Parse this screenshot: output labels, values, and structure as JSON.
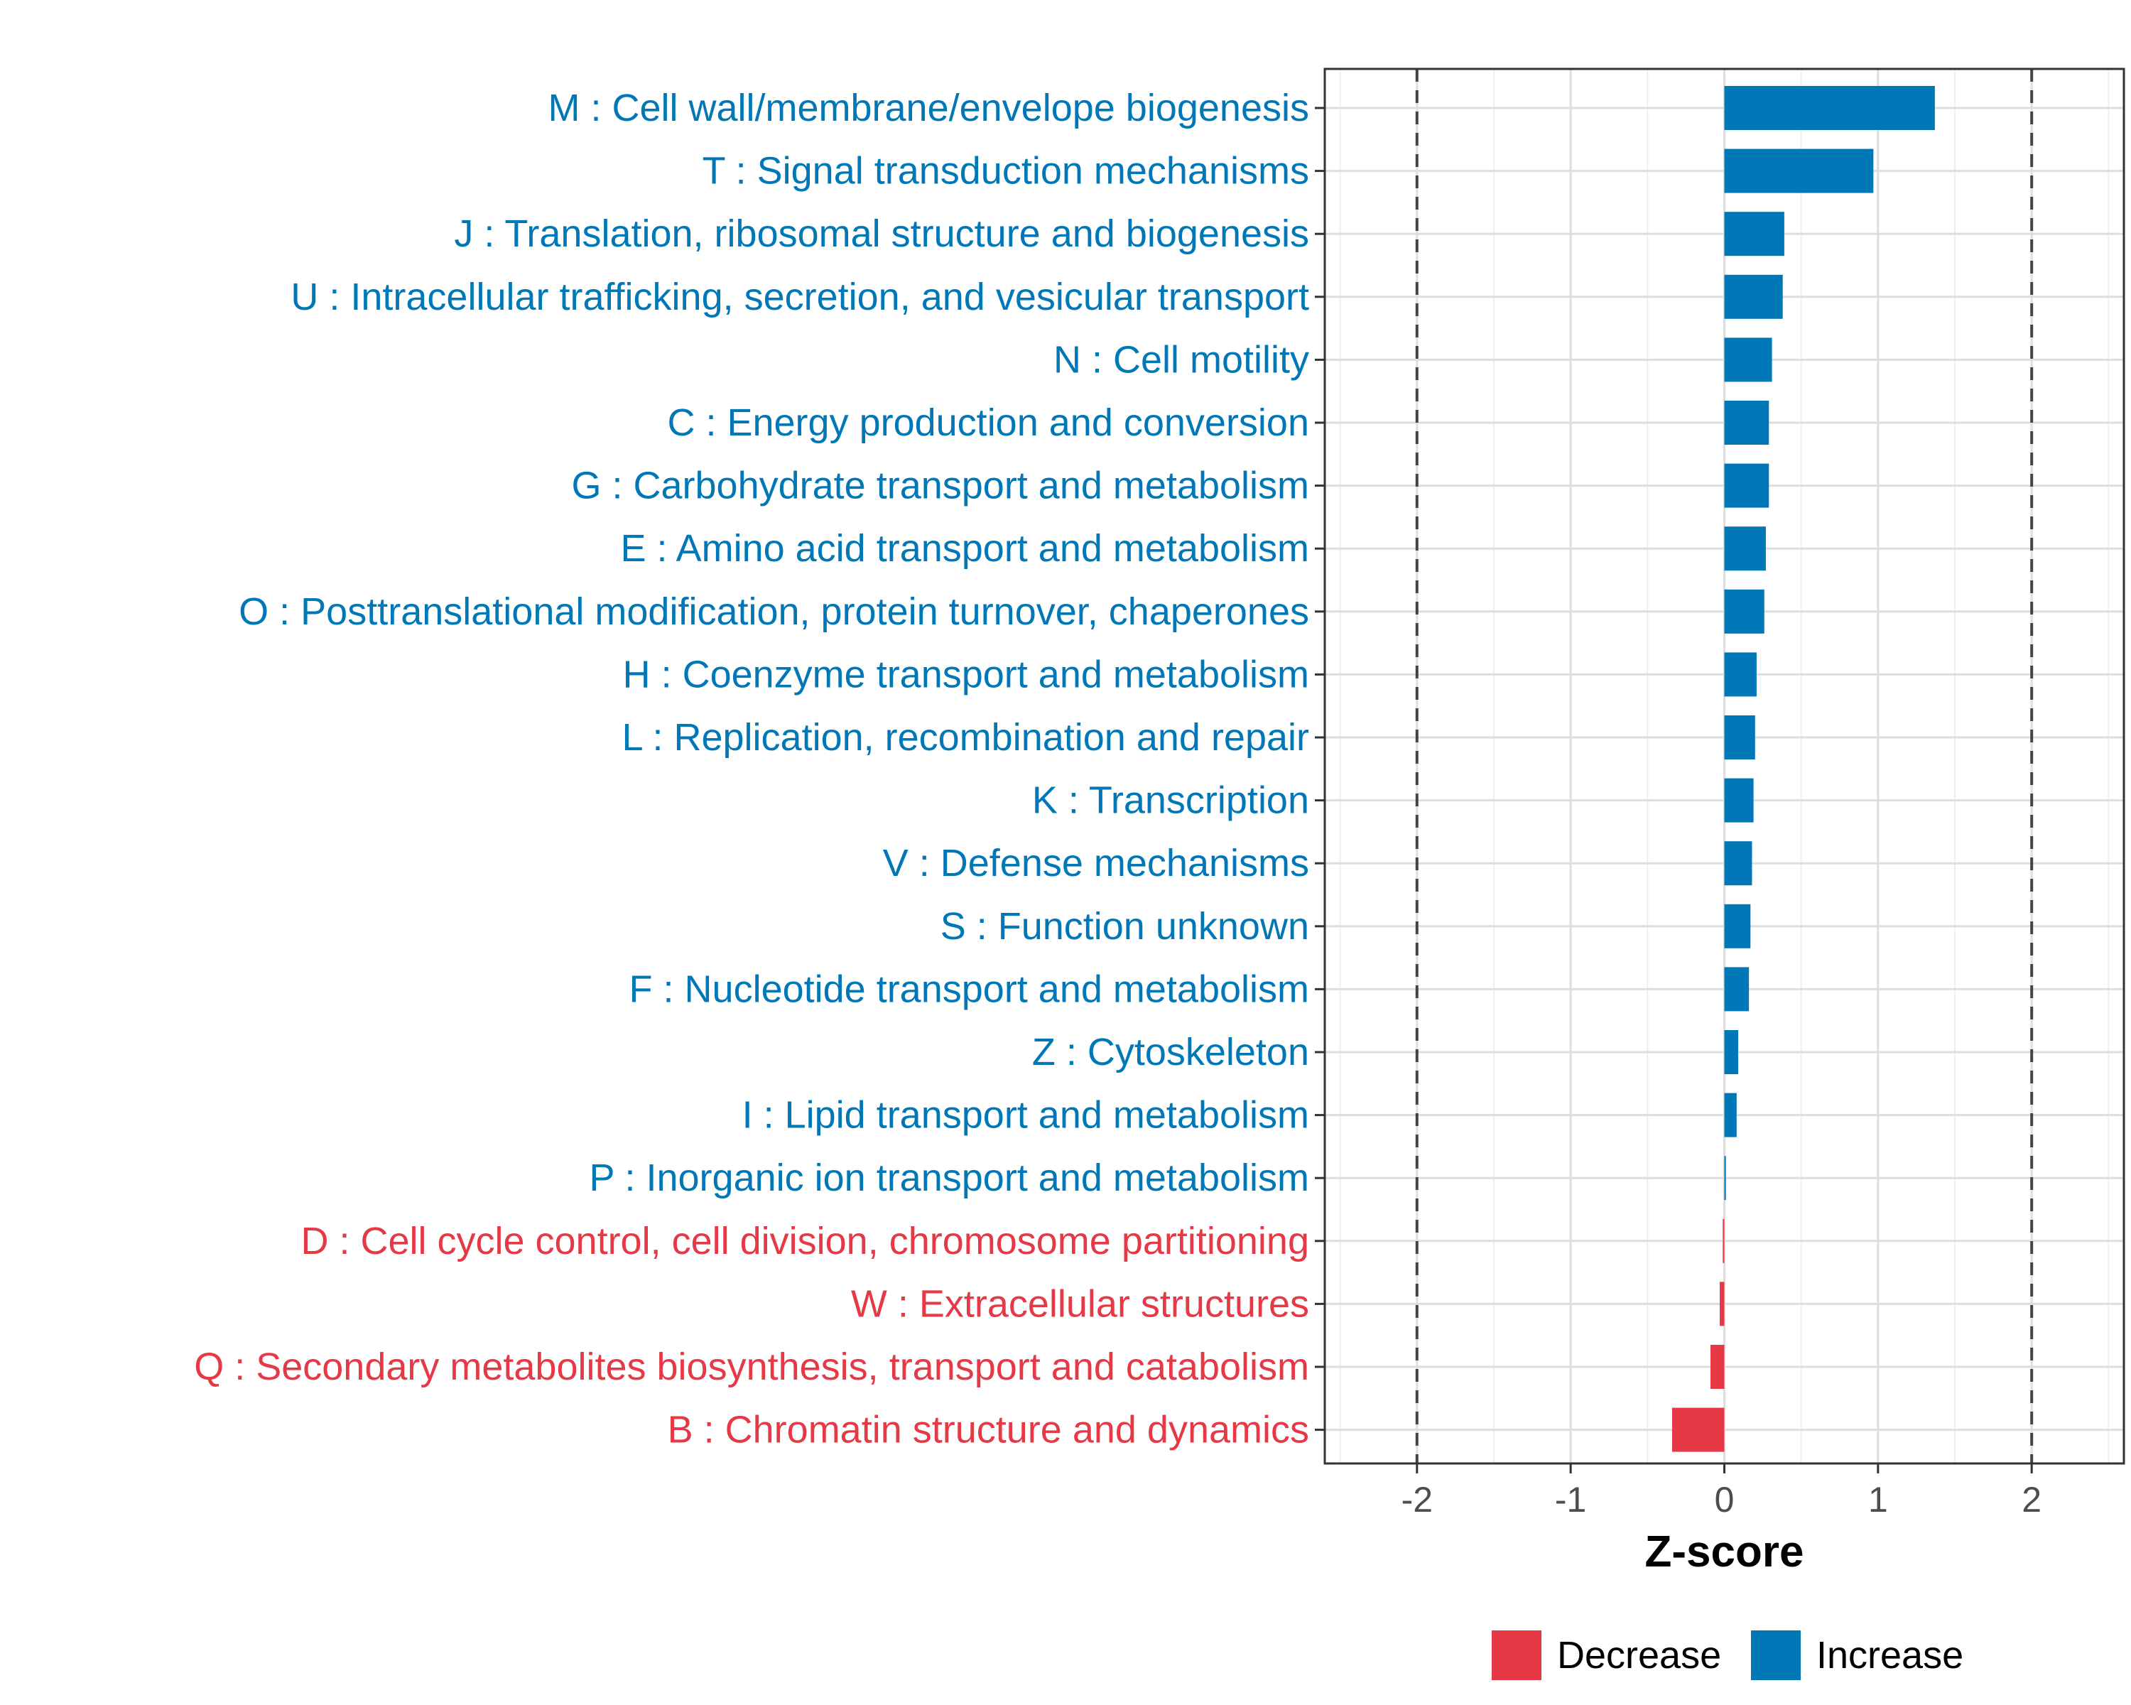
{
  "chart_data": {
    "type": "bar",
    "orientation": "horizontal",
    "xlabel": "Z-score",
    "xlim": [
      -2.6,
      2.6
    ],
    "x_ticks": [
      -2,
      -1,
      0,
      1,
      2
    ],
    "x_tick_labels": [
      "-2",
      "-1",
      "0",
      "1",
      "2"
    ],
    "reference_lines": [
      -2,
      2
    ],
    "grid": true,
    "legend": {
      "placement": "bottom",
      "entries": [
        {
          "label": "Decrease",
          "color": "#e63946"
        },
        {
          "label": "Increase",
          "color": "#0077b6"
        }
      ]
    },
    "categories": [
      {
        "label": "M : Cell wall/membrane/envelope biogenesis",
        "value": 1.37,
        "direction": "Increase"
      },
      {
        "label": "T : Signal transduction mechanisms",
        "value": 0.97,
        "direction": "Increase"
      },
      {
        "label": "J : Translation, ribosomal structure and biogenesis",
        "value": 0.39,
        "direction": "Increase"
      },
      {
        "label": "U : Intracellular trafficking, secretion, and vesicular transport",
        "value": 0.38,
        "direction": "Increase"
      },
      {
        "label": "N : Cell motility",
        "value": 0.31,
        "direction": "Increase"
      },
      {
        "label": "C : Energy production and conversion",
        "value": 0.29,
        "direction": "Increase"
      },
      {
        "label": "G : Carbohydrate transport and metabolism",
        "value": 0.29,
        "direction": "Increase"
      },
      {
        "label": "E : Amino acid transport and metabolism",
        "value": 0.27,
        "direction": "Increase"
      },
      {
        "label": "O : Posttranslational modification, protein turnover, chaperones",
        "value": 0.26,
        "direction": "Increase"
      },
      {
        "label": "H : Coenzyme transport and metabolism",
        "value": 0.21,
        "direction": "Increase"
      },
      {
        "label": "L : Replication, recombination and repair",
        "value": 0.2,
        "direction": "Increase"
      },
      {
        "label": "K : Transcription",
        "value": 0.19,
        "direction": "Increase"
      },
      {
        "label": "V : Defense mechanisms",
        "value": 0.18,
        "direction": "Increase"
      },
      {
        "label": "S : Function unknown",
        "value": 0.17,
        "direction": "Increase"
      },
      {
        "label": "F : Nucleotide transport and metabolism",
        "value": 0.16,
        "direction": "Increase"
      },
      {
        "label": "Z : Cytoskeleton",
        "value": 0.09,
        "direction": "Increase"
      },
      {
        "label": "I : Lipid transport and metabolism",
        "value": 0.08,
        "direction": "Increase"
      },
      {
        "label": "P : Inorganic ion transport and metabolism",
        "value": 0.01,
        "direction": "Increase"
      },
      {
        "label": "D : Cell cycle control, cell division, chromosome partitioning",
        "value": -0.01,
        "direction": "Decrease"
      },
      {
        "label": "W : Extracellular structures",
        "value": -0.03,
        "direction": "Decrease"
      },
      {
        "label": "Q : Secondary metabolites biosynthesis, transport and catabolism",
        "value": -0.09,
        "direction": "Decrease"
      },
      {
        "label": "B : Chromatin structure and dynamics",
        "value": -0.34,
        "direction": "Decrease"
      }
    ]
  }
}
